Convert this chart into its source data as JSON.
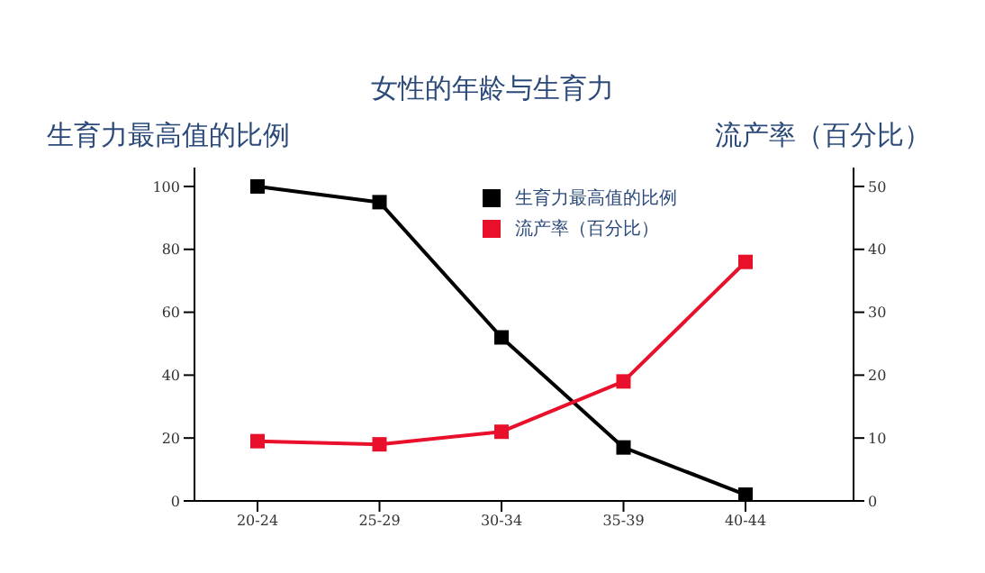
{
  "chart_data": {
    "type": "line",
    "title": "女性的年龄与生育力",
    "ylabel": "生育力最高值的比例",
    "y2label": "流产率（百分比）",
    "categories": [
      "20-24",
      "25-29",
      "30-34",
      "35-39",
      "40-44"
    ],
    "series": [
      {
        "name": "生育力最高值的比例",
        "color": "#000000",
        "values": [
          100,
          95,
          52,
          17,
          2
        ]
      },
      {
        "name": "流产率（百分比）",
        "color": "#e8102a",
        "axis": "y2",
        "values": [
          9.5,
          9,
          11,
          19,
          38
        ]
      }
    ],
    "ylim": [
      0,
      106
    ],
    "yticks": [
      0,
      20,
      40,
      60,
      80,
      100
    ],
    "y2lim": [
      0,
      53
    ],
    "y2ticks": [
      0,
      10,
      20,
      30,
      40,
      50
    ],
    "marker": "square",
    "legend": "top"
  }
}
